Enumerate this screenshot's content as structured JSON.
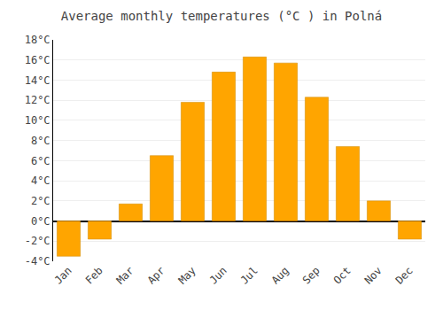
{
  "chart_data": {
    "type": "bar",
    "title": "Average monthly temperatures (°C ) in Polná",
    "categories": [
      "Jan",
      "Feb",
      "Mar",
      "Apr",
      "May",
      "Jun",
      "Jul",
      "Aug",
      "Sep",
      "Oct",
      "Nov",
      "Dec"
    ],
    "values": [
      -3.5,
      -1.8,
      1.7,
      6.5,
      11.8,
      14.8,
      16.3,
      15.7,
      12.3,
      7.4,
      2.0,
      -1.8
    ],
    "color": "#FFA500",
    "ylim": [
      -4,
      18
    ],
    "yticks": [
      {
        "value": -4,
        "label": "-4°C"
      },
      {
        "value": -2,
        "label": "-2°C"
      },
      {
        "value": 0,
        "label": "0°C"
      },
      {
        "value": 2,
        "label": "2°C"
      },
      {
        "value": 4,
        "label": "4°C"
      },
      {
        "value": 6,
        "label": "6°C"
      },
      {
        "value": 8,
        "label": "8°C"
      },
      {
        "value": 10,
        "label": "10°C"
      },
      {
        "value": 12,
        "label": "12°C"
      },
      {
        "value": 14,
        "label": "14°C"
      },
      {
        "value": 16,
        "label": "16°C"
      },
      {
        "value": 18,
        "label": "18°C"
      }
    ],
    "grid": true
  }
}
